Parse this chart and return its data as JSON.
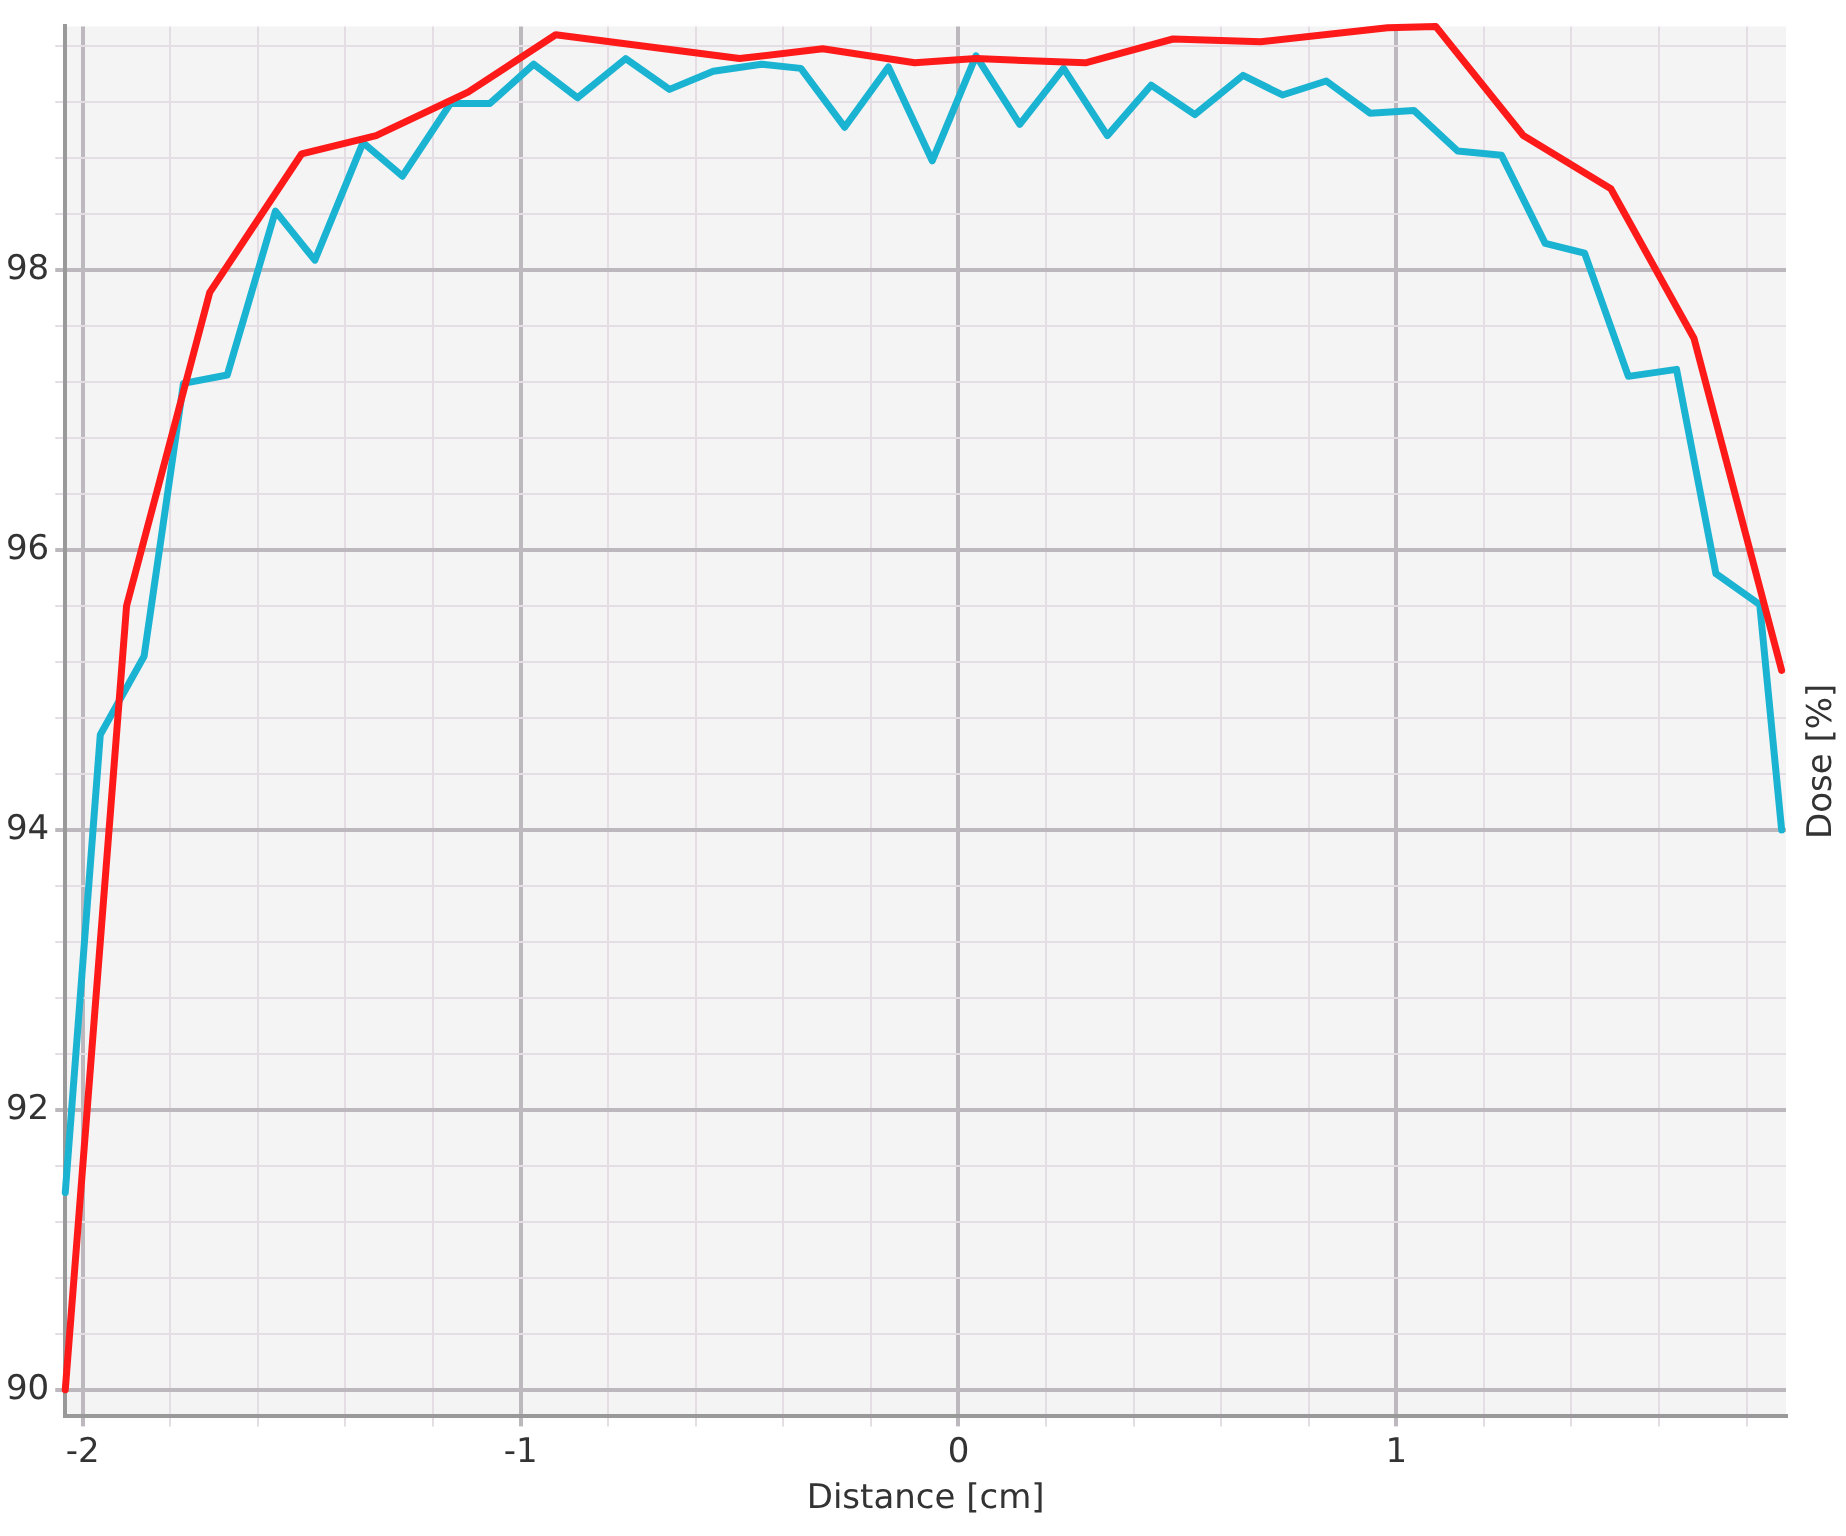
{
  "chart_data": {
    "type": "line",
    "xlabel": "Distance [cm]",
    "ylabel": "Dose [%]",
    "xlim": [
      -2.04,
      1.89
    ],
    "ylim": [
      89.81,
      99.74
    ],
    "xticks": [
      -2,
      {
        "value": -1.8,
        "label": null
      },
      {
        "value": -1.6,
        "label": null
      },
      {
        "value": -1.4,
        "label": null
      },
      {
        "value": -1.2,
        "label": null
      },
      -1,
      {
        "value": -0.8,
        "label": null
      },
      {
        "value": -0.6,
        "label": null
      },
      {
        "value": -0.4,
        "label": null
      },
      {
        "value": -0.2,
        "label": null
      },
      0,
      {
        "value": 0.2,
        "label": null
      },
      {
        "value": 0.4,
        "label": null
      },
      {
        "value": 0.6,
        "label": null
      },
      {
        "value": 0.8,
        "label": null
      },
      1,
      {
        "value": 1.2,
        "label": null
      },
      {
        "value": 1.4,
        "label": null
      },
      {
        "value": 1.6,
        "label": null
      },
      {
        "value": 1.8,
        "label": null
      }
    ],
    "yticks": [
      90,
      {
        "value": 90.4,
        "label": null
      },
      {
        "value": 90.8,
        "label": null
      },
      {
        "value": 91.2,
        "label": null
      },
      {
        "value": 91.6,
        "label": null
      },
      92,
      {
        "value": 92.4,
        "label": null
      },
      {
        "value": 92.8,
        "label": null
      },
      {
        "value": 93.2,
        "label": null
      },
      {
        "value": 93.6,
        "label": null
      },
      94,
      {
        "value": 94.4,
        "label": null
      },
      {
        "value": 94.8,
        "label": null
      },
      {
        "value": 95.2,
        "label": null
      },
      {
        "value": 95.6,
        "label": null
      },
      96,
      {
        "value": 96.4,
        "label": null
      },
      {
        "value": 96.8,
        "label": null
      },
      {
        "value": 97.2,
        "label": null
      },
      {
        "value": 97.6,
        "label": null
      },
      98,
      {
        "value": 98.4,
        "label": null
      },
      {
        "value": 98.8,
        "label": null
      },
      {
        "value": 99.2,
        "label": null
      },
      {
        "value": 99.6,
        "label": null
      }
    ],
    "grid": true,
    "legend": false,
    "marker": "none",
    "line_style": "solid",
    "series": [
      {
        "color": "#ff1a1a",
        "x": [
          -2.04,
          -1.9,
          -1.71,
          -1.5,
          -1.33,
          -1.12,
          -0.92,
          -0.5,
          -0.31,
          -0.1,
          0.04,
          0.29,
          0.49,
          0.69,
          0.98,
          1.09,
          1.29,
          1.49,
          1.68,
          1.88
        ],
        "values": [
          90.0,
          95.6,
          97.84,
          98.83,
          98.96,
          99.27,
          99.68,
          99.51,
          99.58,
          99.48,
          99.51,
          99.48,
          99.65,
          99.63,
          99.73,
          99.74,
          98.96,
          98.58,
          97.51,
          95.14
        ]
      },
      {
        "color": "#1ab4d2",
        "x": [
          -2.04,
          -1.96,
          -1.86,
          -1.77,
          -1.67,
          -1.56,
          -1.47,
          -1.36,
          -1.27,
          -1.16,
          -1.07,
          -0.97,
          -0.87,
          -0.76,
          -0.66,
          -0.56,
          -0.45,
          -0.36,
          -0.26,
          -0.16,
          -0.06,
          0.04,
          0.14,
          0.24,
          0.34,
          0.44,
          0.54,
          0.65,
          0.74,
          0.84,
          0.94,
          1.04,
          1.14,
          1.24,
          1.34,
          1.43,
          1.53,
          1.64,
          1.73,
          1.83,
          1.88
        ],
        "values": [
          91.41,
          94.68,
          95.24,
          97.19,
          97.25,
          98.42,
          98.07,
          98.91,
          98.67,
          99.19,
          99.19,
          99.47,
          99.23,
          99.51,
          99.29,
          99.42,
          99.47,
          99.44,
          99.02,
          99.45,
          98.78,
          99.53,
          99.04,
          99.44,
          98.96,
          99.32,
          99.11,
          99.39,
          99.25,
          99.35,
          99.12,
          99.14,
          98.85,
          98.82,
          98.19,
          98.12,
          97.24,
          97.29,
          95.83,
          95.61,
          94.0
        ]
      }
    ]
  }
}
